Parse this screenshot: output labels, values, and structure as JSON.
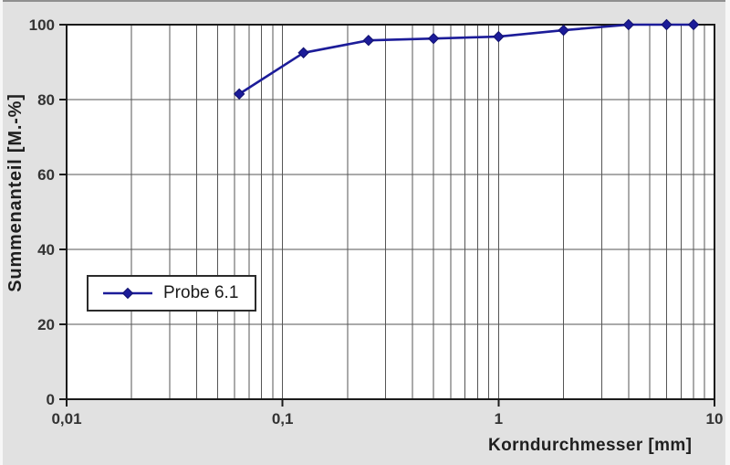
{
  "window": {
    "background": "#e1e1e1",
    "border_top_color": "#8f8f8f",
    "border_side_color": "#f7f7f7"
  },
  "colors": {
    "series": "#1c1c99",
    "series_marker_edge": "#10106e",
    "plot_background": "#ffffff",
    "plot_border": "#1a1a1a",
    "gridline": "#555555",
    "tick_label": "#333333",
    "axis_title": "#1f1f1f",
    "legend_border": "#2b2b2b",
    "legend_background": "#ffffff",
    "legend_text": "#1a1a1a"
  },
  "chart_data": {
    "type": "line",
    "title": "",
    "xlabel": "Korndurchmesser [mm]",
    "ylabel": "Summenanteil [M.-%]",
    "x_scale": "log",
    "xlim": [
      0.01,
      10
    ],
    "ylim": [
      0,
      100
    ],
    "x_ticks": [
      {
        "value": 0.01,
        "label": "0,01"
      },
      {
        "value": 0.1,
        "label": "0,1"
      },
      {
        "value": 1,
        "label": "1"
      },
      {
        "value": 10,
        "label": "10"
      }
    ],
    "y_ticks": [
      {
        "value": 0,
        "label": "0"
      },
      {
        "value": 20,
        "label": "20"
      },
      {
        "value": 40,
        "label": "40"
      },
      {
        "value": 60,
        "label": "60"
      },
      {
        "value": 80,
        "label": "80"
      },
      {
        "value": 100,
        "label": "100"
      }
    ],
    "grid": {
      "vertical": "log major and minor lines",
      "horizontal": "major lines every 20"
    },
    "legend": {
      "position": "inside-lower-left",
      "label": "Probe 6.1"
    },
    "series": [
      {
        "name": "Probe 6.1",
        "marker": "diamond",
        "x": [
          0.063,
          0.125,
          0.25,
          0.5,
          1,
          2,
          4,
          6,
          8
        ],
        "y": [
          81.5,
          92.5,
          95.8,
          96.3,
          96.8,
          98.5,
          100,
          100,
          100
        ]
      }
    ]
  }
}
